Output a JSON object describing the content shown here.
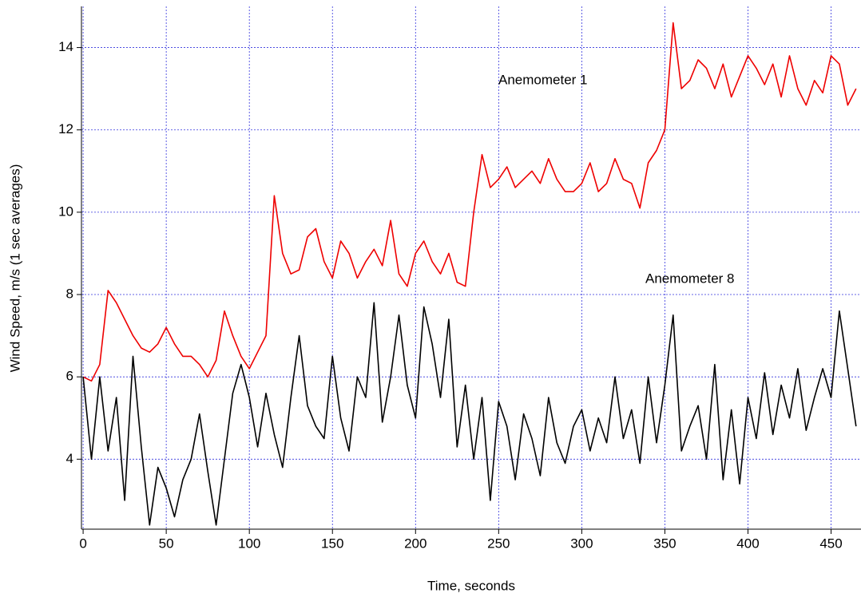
{
  "chart_data": {
    "type": "line",
    "xlabel": "Time, seconds",
    "ylabel": "Wind Speed, m/s (1 sec averages)",
    "annotations": [
      "Anemometer 1",
      "Anemometer 8"
    ],
    "x": [
      0,
      5,
      10,
      15,
      20,
      25,
      30,
      35,
      40,
      45,
      50,
      55,
      60,
      65,
      70,
      75,
      80,
      85,
      90,
      95,
      100,
      105,
      110,
      115,
      120,
      125,
      130,
      135,
      140,
      145,
      150,
      155,
      160,
      165,
      170,
      175,
      180,
      185,
      190,
      195,
      200,
      205,
      210,
      215,
      220,
      225,
      230,
      235,
      240,
      245,
      250,
      255,
      260,
      265,
      270,
      275,
      280,
      285,
      290,
      295,
      300,
      305,
      310,
      315,
      320,
      325,
      330,
      335,
      340,
      345,
      350,
      355,
      360,
      365,
      370,
      375,
      380,
      385,
      390,
      395,
      400,
      405,
      410,
      415,
      420,
      425,
      430,
      435,
      440,
      445,
      450,
      455,
      460,
      465
    ],
    "series": [
      {
        "name": "Anemometer 1",
        "color": "#ee0000",
        "values": [
          6.0,
          5.9,
          6.3,
          8.1,
          7.8,
          7.4,
          7.0,
          6.7,
          6.6,
          6.8,
          7.2,
          6.8,
          6.5,
          6.5,
          6.3,
          6.0,
          6.4,
          7.6,
          7.0,
          6.5,
          6.2,
          6.6,
          7.0,
          10.4,
          9.0,
          8.5,
          8.6,
          9.4,
          9.6,
          8.8,
          8.4,
          9.3,
          9.0,
          8.4,
          8.8,
          9.1,
          8.7,
          9.8,
          8.5,
          8.2,
          9.0,
          9.3,
          8.8,
          8.5,
          9.0,
          8.3,
          8.2,
          10.0,
          11.4,
          10.6,
          10.8,
          11.1,
          10.6,
          10.8,
          11.0,
          10.7,
          11.3,
          10.8,
          10.5,
          10.5,
          10.7,
          11.2,
          10.5,
          10.7,
          11.3,
          10.8,
          10.7,
          10.1,
          11.2,
          11.5,
          12.0,
          14.6,
          13.0,
          13.2,
          13.7,
          13.5,
          13.0,
          13.6,
          12.8,
          13.3,
          13.8,
          13.5,
          13.1,
          13.6,
          12.8,
          13.8,
          13.0,
          12.6,
          13.2,
          12.9,
          13.8,
          13.6,
          12.6,
          13.0
        ]
      },
      {
        "name": "Anemometer 8",
        "color": "#000000",
        "values": [
          6.0,
          4.0,
          6.0,
          4.2,
          5.5,
          3.0,
          6.5,
          4.3,
          2.4,
          3.8,
          3.3,
          2.6,
          3.5,
          4.0,
          5.1,
          3.7,
          2.4,
          4.0,
          5.6,
          6.3,
          5.5,
          4.3,
          5.6,
          4.6,
          3.8,
          5.5,
          7.0,
          5.3,
          4.8,
          4.5,
          6.5,
          5.0,
          4.2,
          6.0,
          5.5,
          7.8,
          4.9,
          6.0,
          7.5,
          5.8,
          5.0,
          7.7,
          6.8,
          5.5,
          7.4,
          4.3,
          5.8,
          4.0,
          5.5,
          3.0,
          5.4,
          4.8,
          3.5,
          5.1,
          4.5,
          3.6,
          5.5,
          4.4,
          3.9,
          4.8,
          5.2,
          4.2,
          5.0,
          4.4,
          6.0,
          4.5,
          5.2,
          3.9,
          6.0,
          4.4,
          5.8,
          7.5,
          4.2,
          4.8,
          5.3,
          4.0,
          6.3,
          3.5,
          5.2,
          3.4,
          5.5,
          4.5,
          6.1,
          4.6,
          5.8,
          5.0,
          6.2,
          4.7,
          5.5,
          6.2,
          5.5,
          7.6,
          6.2,
          4.8
        ]
      }
    ],
    "xlim": [
      -1,
      468
    ],
    "ylim": [
      2.3,
      15
    ],
    "xticks": [
      0,
      50,
      100,
      150,
      200,
      250,
      300,
      350,
      400,
      450
    ],
    "yticks": [
      4,
      6,
      8,
      10,
      12,
      14
    ],
    "grid": true,
    "grid_color": "#3333dd"
  }
}
